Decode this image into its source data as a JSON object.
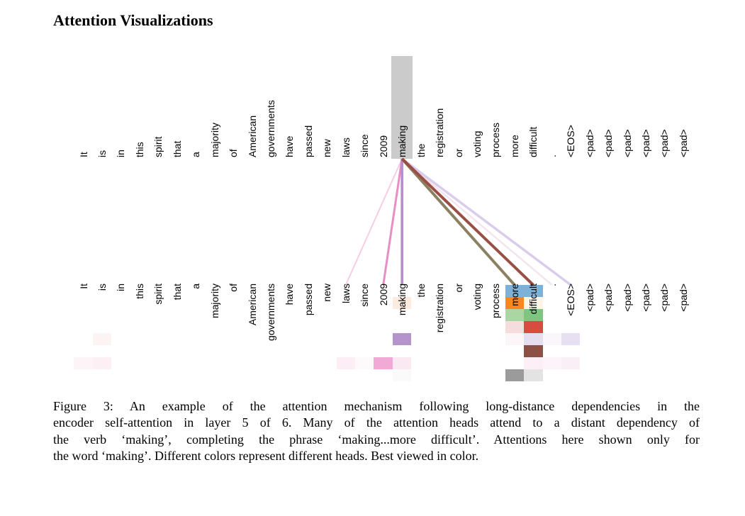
{
  "page": {
    "title": "Attention Visualizations",
    "background_color": "#ffffff"
  },
  "figure": {
    "caption_lines": [
      "Figure 3: An example of the attention mechanism following long-distance dependencies in the",
      "encoder self-attention in layer 5 of 6. Many of the attention heads attend to a distant dependency of",
      "the verb ‘making’, completing the phrase ‘making...more difficult’. Attentions here shown only for",
      "the word ‘making’. Different colors represent different heads. Best viewed in color."
    ]
  },
  "attention_viz": {
    "tokens": [
      "It",
      "is",
      "in",
      "this",
      "spirit",
      "that",
      "a",
      "majority",
      "of",
      "American",
      "governments",
      "have",
      "passed",
      "new",
      "laws",
      "since",
      "2009",
      "making",
      "the",
      "registration",
      "or",
      "voting",
      "process",
      "more",
      "difficult",
      ".",
      "<EOS>",
      "<pad>",
      "<pad>",
      "<pad>",
      "<pad>",
      "<pad>",
      "<pad>"
    ],
    "query_token": {
      "text": "making",
      "index": 17,
      "highlight_color": "#cbcbcb"
    },
    "head_colors": [
      "#7cb2d8",
      "#f8871f",
      "#7fc47f",
      "#d74b41",
      "#b394cb",
      "#8b5145",
      "#f1a9d5",
      "#9b9b9b"
    ],
    "lines": [
      {
        "target_index": 25,
        "target_token": ".",
        "color": "#f3e4ee",
        "width": 2.5
      },
      {
        "target_index": 14,
        "target_token": "laws",
        "color": "#f7cde4",
        "width": 2
      },
      {
        "target_index": 26,
        "target_token": "<EOS>",
        "color": "#d9cdeb",
        "width": 3.5
      },
      {
        "target_index": 16,
        "target_token": "2009",
        "color": "#e78fc5",
        "width": 3
      },
      {
        "target_index": 17,
        "target_token": "making",
        "color": "#b58bce",
        "width": 3.5
      },
      {
        "target_index": 23,
        "target_token": "more",
        "color": "#8b8162",
        "width": 4
      },
      {
        "target_index": 24,
        "target_token": "difficult",
        "color": "#9a4f45",
        "width": 4
      }
    ],
    "heatmap_cells": [
      {
        "token_index": 0,
        "token": "It",
        "head": 7,
        "color": "#fdf4f8"
      },
      {
        "token_index": 1,
        "token": "is",
        "head": 5,
        "color": "#fbf3f4"
      },
      {
        "token_index": 1,
        "token": "is",
        "head": 7,
        "color": "#fcf0f5"
      },
      {
        "token_index": 14,
        "token": "laws",
        "head": 7,
        "color": "#fdeef5"
      },
      {
        "token_index": 15,
        "token": "since",
        "head": 7,
        "color": "#fefafb"
      },
      {
        "token_index": 16,
        "token": "2009",
        "head": 7,
        "color": "#f1a9d5"
      },
      {
        "token_index": 17,
        "token": "making",
        "head": 2,
        "color": "#fcecdf"
      },
      {
        "token_index": 17,
        "token": "making",
        "head": 5,
        "color": "#b394cb"
      },
      {
        "token_index": 17,
        "token": "making",
        "head": 7,
        "color": "#fae8f2"
      },
      {
        "token_index": 17,
        "token": "making",
        "head": 8,
        "color": "#fafafa"
      },
      {
        "token_index": 23,
        "token": "more",
        "head": 1,
        "color": "#7cb2d8"
      },
      {
        "token_index": 23,
        "token": "more",
        "head": 2,
        "color": "#f8871f"
      },
      {
        "token_index": 23,
        "token": "more",
        "head": 3,
        "color": "#a9d6a2"
      },
      {
        "token_index": 23,
        "token": "more",
        "head": 4,
        "color": "#f6dddd"
      },
      {
        "token_index": 23,
        "token": "more",
        "head": 5,
        "color": "#fcf6f8"
      },
      {
        "token_index": 23,
        "token": "more",
        "head": 8,
        "color": "#9b9b9b"
      },
      {
        "token_index": 24,
        "token": "difficult",
        "head": 1,
        "color": "#7cb2d8"
      },
      {
        "token_index": 24,
        "token": "difficult",
        "head": 2,
        "color": "#fdf3e7"
      },
      {
        "token_index": 24,
        "token": "difficult",
        "head": 3,
        "color": "#7fc47f"
      },
      {
        "token_index": 24,
        "token": "difficult",
        "head": 4,
        "color": "#d74b41"
      },
      {
        "token_index": 24,
        "token": "difficult",
        "head": 5,
        "color": "#e4def0"
      },
      {
        "token_index": 24,
        "token": "difficult",
        "head": 6,
        "color": "#8b5145"
      },
      {
        "token_index": 24,
        "token": "difficult",
        "head": 7,
        "color": "#fcf0f6"
      },
      {
        "token_index": 24,
        "token": "difficult",
        "head": 8,
        "color": "#e3e3e3"
      },
      {
        "token_index": 25,
        "token": ".",
        "head": 5,
        "color": "#faf7fb"
      },
      {
        "token_index": 25,
        "token": ".",
        "head": 7,
        "color": "#fdf4f9"
      },
      {
        "token_index": 26,
        "token": "<EOS>",
        "head": 5,
        "color": "#e7e0f2"
      },
      {
        "token_index": 26,
        "token": "<EOS>",
        "head": 7,
        "color": "#fbeff6"
      }
    ]
  }
}
